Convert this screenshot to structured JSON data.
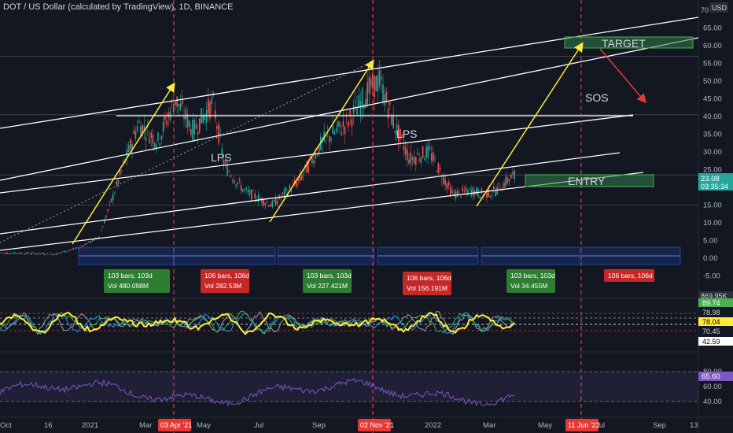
{
  "header": {
    "title": "DOT / US Dollar (calculated by TradingView), 1D, BINANCE",
    "currency": "USD",
    "top_tick": "70"
  },
  "colors": {
    "background": "#131722",
    "up": "#26a69a",
    "down": "#ef5350",
    "channel": "#ffffff",
    "arrow_yellow": "#ffeb3b",
    "arrow_red": "#e53935",
    "zone": "#2f7d4a",
    "rsi": "#7e57c2"
  },
  "chart_data": [
    {
      "type": "candlestick",
      "series_name": "DOT / US Dollar",
      "y_ticks": [
        "65.00",
        "60.00",
        "55.00",
        "50.00",
        "45.00",
        "40.00",
        "35.00",
        "30.00",
        "25.00",
        "20.00",
        "15.00",
        "10.00",
        "5.00",
        "0.00",
        "-5.00"
      ],
      "ylim": [
        -7.5,
        70
      ],
      "x_ticks": [
        "Oct",
        "16",
        "2021",
        "Mar",
        "May",
        "Jul",
        "Sep",
        "Nov",
        "2022",
        "Mar",
        "May",
        "Jul",
        "Sep",
        "13"
      ],
      "x_highlight": [
        "03 Apr '21",
        "02 Nov '21",
        "11 Jun '22"
      ],
      "last_price": "23.08",
      "countdown": "03:35:34",
      "annotations": [
        "LPS",
        "LPS",
        "SOS",
        "TARGET",
        "ENTRY"
      ],
      "bar_ranges": [
        {
          "bars": "103 bars, 103d",
          "vol": "Vol 480.098M",
          "direction": "up"
        },
        {
          "bars": "106 bars, 106d",
          "vol": "Vol 282.53M",
          "direction": "down"
        },
        {
          "bars": "103 bars, 103d",
          "vol": "Vol 227.421M",
          "direction": "up"
        },
        {
          "bars": "106 bars, 106d",
          "vol": "Vol 156.191M",
          "direction": "down"
        },
        {
          "bars": "103 bars, 103d",
          "vol": "Vol 34.455M",
          "direction": "up"
        },
        {
          "bars": "106 bars, 106d",
          "vol": "",
          "direction": "down"
        }
      ],
      "volume_label": "869.95K"
    },
    {
      "type": "line",
      "series_name": "Oscillator",
      "values_shown": [
        "89.74",
        "78.98",
        "78.04",
        "70.45",
        "42.59"
      ]
    },
    {
      "type": "line",
      "series_name": "RSI",
      "y_ticks": [
        "80.00",
        "60.00",
        "40.00"
      ],
      "ylim": [
        30,
        90
      ],
      "last_value": "65.60"
    }
  ]
}
